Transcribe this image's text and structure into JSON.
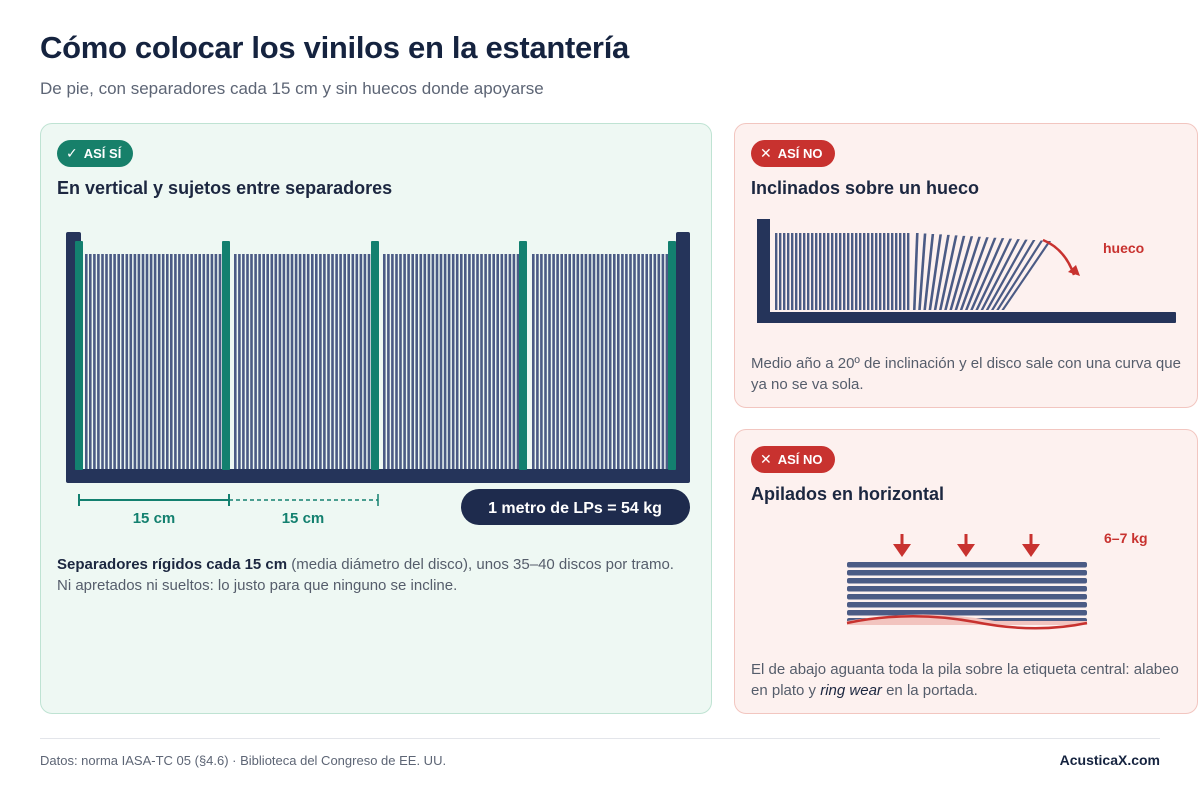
{
  "header": {
    "title": "Cómo colocar los vinilos en la estantería",
    "subtitle": "De pie, con separadores cada 15 cm y sin huecos donde apoyarse"
  },
  "good": {
    "badge": "ASÍ SÍ",
    "badge_icon": "check-icon",
    "title": "En vertical y sujetos entre separadores",
    "dim1": "15 cm",
    "dim2": "15 cm",
    "pill": "1 metro de LPs = 54 kg",
    "text_bold": "Separadores rígidos cada 15 cm",
    "text_rest": " (media diámetro del disco), unos 35–40 discos por tramo. Ni apretados ni sueltos: lo justo para que ninguno se incline."
  },
  "bad1": {
    "badge": "ASÍ NO",
    "badge_icon": "x-icon",
    "title": "Inclinados sobre un hueco",
    "label": "hueco",
    "text": "Medio año a 20º de inclinación y el disco sale con una curva que ya no se va sola."
  },
  "bad2": {
    "badge": "ASÍ NO",
    "badge_icon": "x-icon",
    "title": "Apilados en horizontal",
    "label": "6–7 kg",
    "text_a": "El de abajo aguanta toda la pila sobre la etiqueta central: alabeo en plato y ",
    "text_italic": "ring wear",
    "text_b": " en la portada."
  },
  "footer": {
    "source": "Datos: norma IASA-TC 05 (§4.6) · Biblioteca del Congreso de EE. UU.",
    "brand": "AcusticaX.com"
  },
  "colors": {
    "navy": "#25345a",
    "record": "#4b5b85",
    "teal": "#13806f",
    "red": "#c8322f",
    "good_bg": "#eef8f3",
    "bad_bg": "#fdf1ef"
  }
}
